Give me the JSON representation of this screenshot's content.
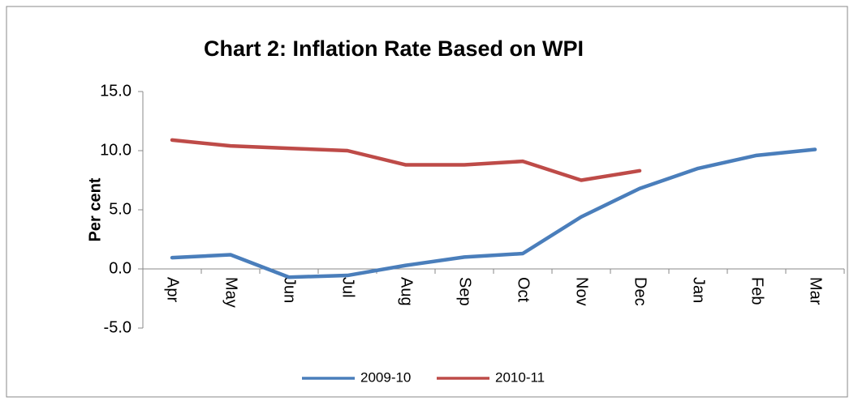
{
  "chart_data": {
    "type": "line",
    "title": "Chart 2: Inflation Rate Based on WPI",
    "y_label": "Per cent",
    "categories": [
      "Apr",
      "May",
      "Jun",
      "Jul",
      "Aug",
      "Sep",
      "Oct",
      "Nov",
      "Dec",
      "Jan",
      "Feb",
      "Mar"
    ],
    "series": [
      {
        "name": "2009-10",
        "color": "#4a7ebb",
        "values": [
          0.95,
          1.2,
          -0.7,
          -0.55,
          0.3,
          1.0,
          1.3,
          4.4,
          6.8,
          8.5,
          9.6,
          10.1
        ]
      },
      {
        "name": "2010-11",
        "color": "#be4b48",
        "values": [
          10.9,
          10.4,
          10.2,
          10.0,
          8.8,
          8.8,
          9.1,
          7.5,
          8.3,
          null,
          null,
          null
        ]
      }
    ],
    "ylim": [
      -5,
      15
    ],
    "yticks": [
      {
        "value": -5,
        "label": "-5.0"
      },
      {
        "value": 0,
        "label": "0.0"
      },
      {
        "value": 5,
        "label": "5.0"
      },
      {
        "value": 10,
        "label": "10.0"
      },
      {
        "value": 15,
        "label": "15.0"
      }
    ],
    "grid": false,
    "legend": "bottom"
  }
}
